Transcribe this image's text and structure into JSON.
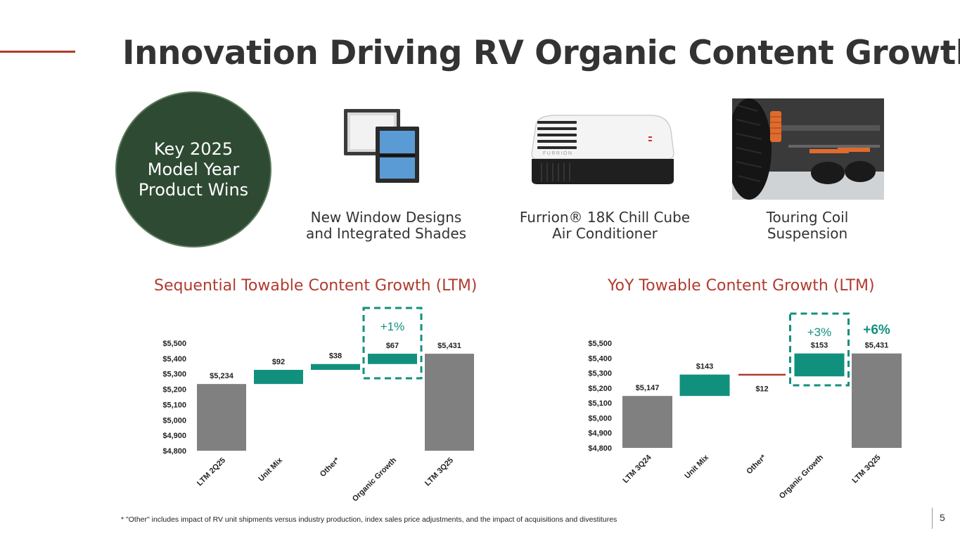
{
  "header": {
    "title": "Innovation Driving RV Organic Content Growth"
  },
  "badge": {
    "lines": [
      "Key 2025",
      "Model Year",
      "Product Wins"
    ]
  },
  "products": [
    {
      "icon": "window-shade-icon",
      "lines": [
        "New Window Designs",
        "and Integrated Shades"
      ]
    },
    {
      "icon": "air-conditioner-icon",
      "lines": [
        "Furrion® 18K Chill Cube",
        "Air Conditioner"
      ],
      "brand": "FURRION"
    },
    {
      "icon": "suspension-icon",
      "lines": [
        "Touring Coil",
        "Suspension"
      ]
    }
  ],
  "colors": {
    "accent": "#b23a2e",
    "teal": "#12907e",
    "gray": "#808080",
    "dark_green": "#2f4a33"
  },
  "chart_data": [
    {
      "type": "bar",
      "subtype": "waterfall",
      "title": "Sequential Towable Content Growth (LTM)",
      "ylim": [
        4800,
        5500
      ],
      "ytick_labels": [
        "$5,500",
        "$5,400",
        "$5,300",
        "$5,200",
        "$5,100",
        "$5,000",
        "$4,900",
        "$4,800"
      ],
      "ytick_values": [
        5500,
        5400,
        5300,
        5200,
        5100,
        5000,
        4900,
        4800
      ],
      "categories": [
        "LTM 2Q25",
        "Unit Mix",
        "Other*",
        "Organic Growth",
        "LTM 3Q25"
      ],
      "bars": [
        {
          "kind": "total",
          "start": 4800,
          "end": 5234,
          "label": "$5,234"
        },
        {
          "kind": "delta",
          "start": 5234,
          "end": 5326,
          "label": "$92"
        },
        {
          "kind": "delta",
          "start": 5326,
          "end": 5364,
          "label": "$38"
        },
        {
          "kind": "delta",
          "start": 5364,
          "end": 5431,
          "label": "$67"
        },
        {
          "kind": "total",
          "start": 4800,
          "end": 5431,
          "label": "$5,431"
        }
      ],
      "highlight": {
        "index": 3,
        "text": "+1%"
      }
    },
    {
      "type": "bar",
      "subtype": "waterfall",
      "title": "YoY Towable Content Growth (LTM)",
      "ylim": [
        4800,
        5500
      ],
      "ytick_labels": [
        "$5,500",
        "$5,400",
        "$5,300",
        "$5,200",
        "$5,100",
        "$5,000",
        "$4,900",
        "$4,800"
      ],
      "ytick_values": [
        5500,
        5400,
        5300,
        5200,
        5100,
        5000,
        4900,
        4800
      ],
      "categories": [
        "LTM 3Q24",
        "Unit Mix",
        "Other*",
        "Organic Growth",
        "LTM 3Q25"
      ],
      "bars": [
        {
          "kind": "total",
          "start": 4800,
          "end": 5147,
          "label": "$5,147"
        },
        {
          "kind": "delta",
          "start": 5147,
          "end": 5290,
          "label": "$143"
        },
        {
          "kind": "negative",
          "start": 5290,
          "end": 5278,
          "label": "$12"
        },
        {
          "kind": "delta",
          "start": 5278,
          "end": 5431,
          "label": "$153"
        },
        {
          "kind": "total",
          "start": 4800,
          "end": 5431,
          "label": "$5,431"
        }
      ],
      "highlight": {
        "index": 3,
        "text": "+3%"
      },
      "total_change": "+6%"
    }
  ],
  "footnote": "* \"Other\" includes impact of RV unit shipments versus industry production, index sales price adjustments, and the impact of acquisitions and divestitures",
  "page_number": "5"
}
